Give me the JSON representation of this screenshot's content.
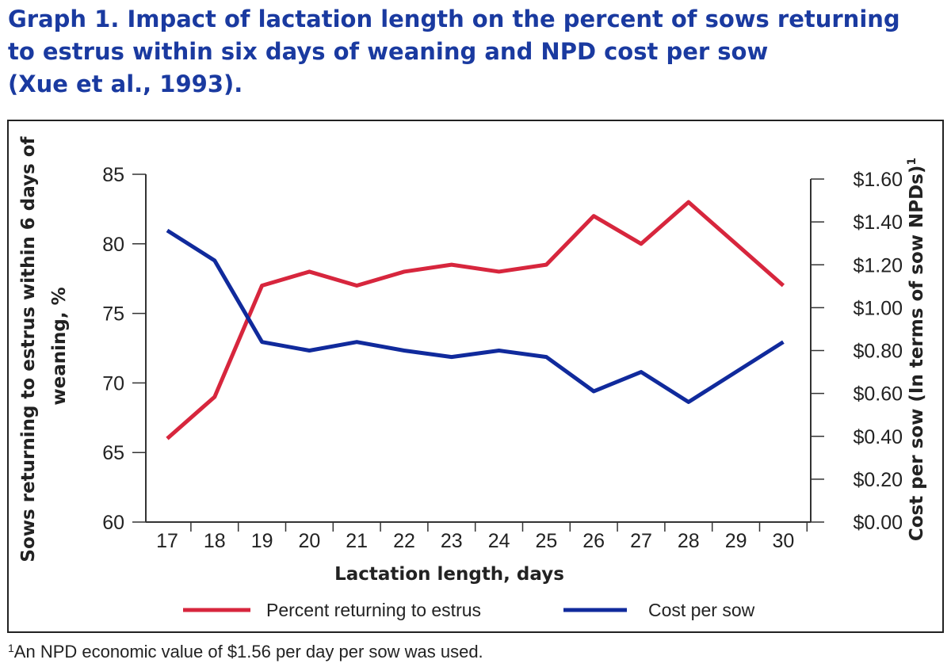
{
  "title_lines": [
    "Graph 1. Impact of lactation length on the percent of sows returning",
    "to estrus within six days of weaning and NPD cost per sow",
    "(Xue et al., 1993)."
  ],
  "footnote": {
    "marker": "1",
    "text": "An NPD economic value of $1.56 per day per sow was used."
  },
  "colors": {
    "title": "#1a3aa0",
    "estrus_series": "#d7263d",
    "cost_series": "#102a9c",
    "axis": "#333333"
  },
  "chart_data": {
    "type": "line",
    "x": [
      17,
      18,
      19,
      20,
      21,
      22,
      23,
      24,
      25,
      26,
      27,
      28,
      29,
      30
    ],
    "xlabel": "Lactation length, days",
    "ylabel_left": "Sows returning to estrus within 6 days of weaning, %",
    "ylabel_left_lines": [
      "Sows returning to estrus within 6 days of",
      "weaning, %"
    ],
    "ylabel_right": "Cost per sow (In terms of sow NPDs)",
    "ylabel_right_superscript": "1",
    "ylim_left": [
      60,
      85
    ],
    "yticks_left": [
      60,
      65,
      70,
      75,
      80,
      85
    ],
    "ylim_right": [
      0,
      1.6
    ],
    "yticks_right": [
      0,
      0.2,
      0.4,
      0.6,
      0.8,
      1.0,
      1.2,
      1.4,
      1.6
    ],
    "ytick_labels_right": [
      "$0.00",
      "$0.20",
      "$0.40",
      "$0.60",
      "$0.80",
      "$1.00",
      "$1.20",
      "$1.40",
      "$1.60"
    ],
    "series": [
      {
        "name": "Percent returning to estrus",
        "axis": "left",
        "values": [
          66,
          69,
          77,
          78,
          77,
          78,
          78.5,
          78,
          78.5,
          82,
          80,
          83,
          80,
          77
        ]
      },
      {
        "name": "Cost per sow",
        "axis": "right",
        "values": [
          1.36,
          1.22,
          0.84,
          0.8,
          0.84,
          0.8,
          0.77,
          0.8,
          0.77,
          0.61,
          0.7,
          0.56,
          0.7,
          0.84
        ]
      }
    ],
    "legend_position": "bottom",
    "grid": false
  }
}
